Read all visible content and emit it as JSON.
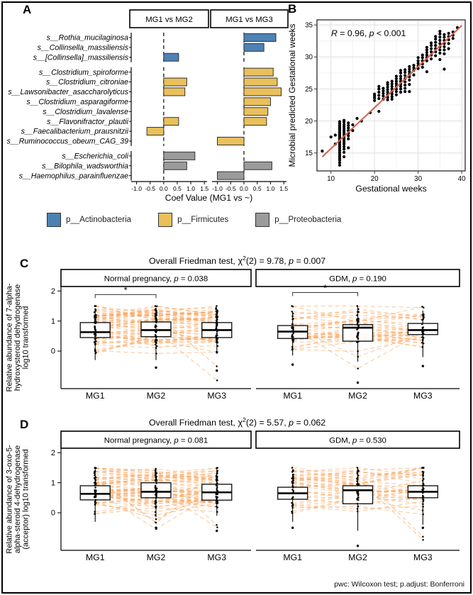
{
  "figure": {
    "panel_labels": {
      "a": "A",
      "b": "B",
      "c": "C",
      "d": "D"
    },
    "footnote": "pwc: Wilcoxon test; p.adjust: Bonferroni"
  },
  "colors": {
    "actinobacteria": "#4e81b4",
    "firmicutes": "#e9c05b",
    "proteobacteria": "#9b9b9b",
    "bar_stroke": "#333333",
    "regression_line": "#d6604d",
    "spaghetti": "#f9a55e",
    "point": "#000000"
  },
  "chart_data": [
    {
      "id": "A",
      "type": "bar",
      "orientation": "horizontal",
      "facets": [
        "MG1 vs MG2",
        "MG1 vs MG3"
      ],
      "xlabel": "Coef Value (MG1 vs ~)",
      "x_tick_labels": [
        "-1.0",
        "-0.5",
        "0.0",
        "0.5",
        "1.0",
        "1.5"
      ],
      "x_tick_values": [
        -1.0,
        -0.5,
        0.0,
        0.5,
        1.0,
        1.5
      ],
      "xlim": [
        -1.2,
        1.6
      ],
      "groups": [
        {
          "phylum": "p__Actinobacteria",
          "color_key": "actinobacteria",
          "species": [
            {
              "name": "s__Rothia_mucilaginosa",
              "mg1_vs_mg2": null,
              "mg1_vs_mg3": 1.2
            },
            {
              "name": "s__Collinsella_massiliensis",
              "mg1_vs_mg2": null,
              "mg1_vs_mg3": 0.75
            },
            {
              "name": "s__[Collinsella]_massiliensis",
              "mg1_vs_mg2": 0.55,
              "mg1_vs_mg3": null
            }
          ]
        },
        {
          "phylum": "p__Firmicutes",
          "color_key": "firmicutes",
          "species": [
            {
              "name": "s__Clostridium_spiroforme",
              "mg1_vs_mg2": null,
              "mg1_vs_mg3": 1.1
            },
            {
              "name": "s__Clostridium_citroniae",
              "mg1_vs_mg2": 0.85,
              "mg1_vs_mg3": 1.25
            },
            {
              "name": "s__Lawsonibacter_asaccharolyticus",
              "mg1_vs_mg2": 0.78,
              "mg1_vs_mg3": 1.4
            },
            {
              "name": "s__Clostridium_asparagiforme",
              "mg1_vs_mg2": null,
              "mg1_vs_mg3": 1.0
            },
            {
              "name": "s__Clostridium_lavalense",
              "mg1_vs_mg2": null,
              "mg1_vs_mg3": 0.9
            },
            {
              "name": "s__Flavonifractor_plautii",
              "mg1_vs_mg2": 0.55,
              "mg1_vs_mg3": 0.85
            },
            {
              "name": "s__Faecalibacterium_prausnitzii",
              "mg1_vs_mg2": -0.62,
              "mg1_vs_mg3": null
            },
            {
              "name": "s__Ruminococcus_obeum_CAG_39",
              "mg1_vs_mg2": null,
              "mg1_vs_mg3": -1.0
            }
          ]
        },
        {
          "phylum": "p__Proteobacteria",
          "color_key": "proteobacteria",
          "species": [
            {
              "name": "s__Escherichia_coli",
              "mg1_vs_mg2": 1.15,
              "mg1_vs_mg3": null
            },
            {
              "name": "s__Bilophila_wadsworthia",
              "mg1_vs_mg2": 0.85,
              "mg1_vs_mg3": 1.05
            },
            {
              "name": "s__Haemophilus_parainfluenzae",
              "mg1_vs_mg2": null,
              "mg1_vs_mg3": -1.0
            }
          ]
        }
      ],
      "legend": [
        {
          "label": "p__Actinobacteria",
          "color_key": "actinobacteria"
        },
        {
          "label": "p__Firmicutes",
          "color_key": "firmicutes"
        },
        {
          "label": "p__Proteobacteria",
          "color_key": "proteobacteria"
        }
      ]
    },
    {
      "id": "B",
      "type": "scatter",
      "xlabel": "Gestational weeks",
      "ylabel": "Microbial predicted Gestational weeks",
      "annotation": {
        "r_symbol": "R",
        "r_value": "0.96",
        "p_symbol": "p",
        "p_value": "< 0.001"
      },
      "x_ticks": [
        10,
        20,
        30,
        40
      ],
      "y_ticks": [
        15,
        20,
        25,
        30,
        35
      ],
      "xlim": [
        6.8,
        40.8
      ],
      "ylim": [
        12.2,
        35.8
      ],
      "regression": {
        "x1": 8,
        "y1": 14.4,
        "x2": 40,
        "y2": 34.9
      },
      "clusters": [
        [
          8,
          [
            15.3
          ]
        ],
        [
          10,
          [
            17.5
          ]
        ],
        [
          11,
          [
            16.4,
            17.8
          ]
        ],
        [
          12,
          [
            13.1,
            13.5,
            13.9,
            14.2,
            14.5,
            14.8,
            15.1,
            15.4,
            15.7,
            16,
            16.3,
            16.6,
            16.9,
            17.1,
            17.3,
            17.5,
            17.7,
            17.9,
            18.1,
            18.3,
            18.5,
            18.7,
            18.9,
            19.1,
            19.3,
            19.6,
            19.9
          ]
        ],
        [
          13,
          [
            14.4,
            15.1,
            15.6,
            16,
            16.4,
            16.7,
            17,
            17.3,
            17.6,
            17.9,
            18.2,
            18.5,
            18.8,
            19.1,
            19.4,
            19.8,
            20.1
          ]
        ],
        [
          14,
          [
            15.8,
            17.2,
            17.7,
            18.1,
            18.5,
            18.9,
            19.3,
            19.7
          ]
        ],
        [
          15,
          [
            18.5,
            19.4
          ]
        ],
        [
          16,
          [
            20.4
          ]
        ],
        [
          17,
          [
            20
          ]
        ],
        [
          19,
          [
            21.3
          ]
        ],
        [
          20,
          [
            23.2,
            23.6,
            23.9,
            24.2
          ]
        ],
        [
          21,
          [
            21.5,
            23.5,
            24,
            24.5,
            25,
            25.4
          ]
        ],
        [
          22,
          [
            23.4,
            23.9,
            24.3,
            24.7,
            25.1
          ]
        ],
        [
          23,
          [
            23.3,
            23.7,
            24.1,
            24.5,
            24.9,
            25.3,
            25.7,
            26
          ]
        ],
        [
          24,
          [
            23.4,
            23.8,
            24.2,
            24.6,
            25,
            25.4,
            25.8,
            26.2
          ]
        ],
        [
          25,
          [
            24.1,
            24.6,
            25,
            25.4,
            25.8,
            26.2,
            26.6,
            27
          ]
        ],
        [
          26,
          [
            24.5,
            25,
            25.4,
            25.8,
            26.2,
            26.6,
            27,
            27.5,
            27.9
          ]
        ],
        [
          27,
          [
            24.6,
            25.1,
            25.6,
            26.1,
            26.6,
            27.1,
            27.6,
            28
          ]
        ],
        [
          28,
          [
            24.6,
            25.7,
            26.4,
            26.9,
            27.3,
            27.7,
            28.1,
            28.5
          ]
        ],
        [
          29,
          [
            27.2,
            27.9,
            28.3,
            28.7
          ]
        ],
        [
          30,
          [
            28.2,
            28.6,
            29,
            29.4,
            29.9
          ]
        ],
        [
          31,
          [
            28.4,
            28.9,
            29.4,
            29.9,
            30.3
          ]
        ],
        [
          32,
          [
            27.7,
            29.4,
            29.9,
            30.3,
            30.7,
            31.1,
            31.5
          ]
        ],
        [
          33,
          [
            29.7,
            30.3,
            30.8,
            31.3,
            31.8,
            32.2
          ]
        ],
        [
          34,
          [
            30.2,
            30.8,
            31.3,
            31.8,
            32.3,
            32.8,
            33.2
          ]
        ],
        [
          35,
          [
            29.6,
            30.6,
            31.1,
            31.6,
            32.1,
            32.6,
            33.1,
            33.6,
            34
          ]
        ],
        [
          36,
          [
            28.1,
            30.5,
            31.1,
            31.6,
            32.1,
            32.6,
            33.1,
            33.5
          ]
        ],
        [
          37,
          [
            31.3,
            32.1,
            32.7,
            33.2,
            33.7
          ]
        ],
        [
          38,
          [
            32.9,
            33.4,
            33.9
          ]
        ],
        [
          39,
          [
            34.6
          ]
        ]
      ]
    },
    {
      "id": "C",
      "type": "box",
      "title": {
        "prefix": "Overall Friedman test,",
        "chi": "χ",
        "chi_exp": "2",
        "df": "(2)",
        "value": "9.78",
        "p_value": "0.007"
      },
      "ylabel_lines": [
        "Relative abundance of  7-alpha-",
        "hydroxysteroid dehydrogenase",
        "log10 transformed"
      ],
      "y_ticks": [
        0,
        1,
        2
      ],
      "ylim": [
        -1.25,
        2.15
      ],
      "categories": [
        "MG1",
        "MG2",
        "MG3"
      ],
      "facets": [
        {
          "label": "Normal pregnancy",
          "p_symbol": "p",
          "p_value": "0.038",
          "n_lines": 60,
          "seed": 7,
          "boxes": [
            {
              "q1": 0.45,
              "median": 0.63,
              "q3": 0.95,
              "whisker_low": -0.3,
              "whisker_high": 1.4,
              "outliers": []
            },
            {
              "q1": 0.48,
              "median": 0.7,
              "q3": 0.97,
              "whisker_low": -0.3,
              "whisker_high": 1.45,
              "outliers": [
                -0.55
              ]
            },
            {
              "q1": 0.45,
              "median": 0.7,
              "q3": 0.95,
              "whisker_low": -0.1,
              "whisker_high": 1.4,
              "outliers": [
                -0.65
              ]
            }
          ],
          "bracket": {
            "from": 0,
            "to": 1,
            "label": "*",
            "y": 1.88
          }
        },
        {
          "label": "GDM",
          "p_symbol": "p",
          "p_value": "0.190",
          "n_lines": 38,
          "seed": 13,
          "boxes": [
            {
              "q1": 0.42,
              "median": 0.65,
              "q3": 0.85,
              "whisker_low": -0.15,
              "whisker_high": 1.3,
              "outliers": [
                -0.45
              ]
            },
            {
              "q1": 0.33,
              "median": 0.78,
              "q3": 0.88,
              "whisker_low": -0.35,
              "whisker_high": 1.5,
              "outliers": [
                -1.05
              ]
            },
            {
              "q1": 0.55,
              "median": 0.7,
              "q3": 0.92,
              "whisker_low": -0.2,
              "whisker_high": 1.35,
              "outliers": [
                -0.5
              ]
            }
          ],
          "bracket": {
            "from": 0,
            "to": 1,
            "label": "*",
            "y": 1.95
          }
        }
      ]
    },
    {
      "id": "D",
      "type": "box",
      "title": {
        "prefix": "Overall Friedman test,",
        "chi": "χ",
        "chi_exp": "2",
        "df": "(2)",
        "value": "5.57",
        "p_value": "0.062"
      },
      "ylabel_lines": [
        "Relative abundance of  3-oxo-5-",
        "alpha-steroid 4-dehydrogenase",
        "(acceptor)  log10 transformed"
      ],
      "y_ticks": [
        0,
        1,
        2
      ],
      "ylim": [
        -1.25,
        2.15
      ],
      "categories": [
        "MG1",
        "MG2",
        "MG3"
      ],
      "facets": [
        {
          "label": "Normal pregnancy",
          "p_symbol": "p",
          "p_value": "0.081",
          "n_lines": 60,
          "seed": 21,
          "boxes": [
            {
              "q1": 0.43,
              "median": 0.63,
              "q3": 0.9,
              "whisker_low": -0.3,
              "whisker_high": 1.45,
              "outliers": []
            },
            {
              "q1": 0.5,
              "median": 0.7,
              "q3": 1.0,
              "whisker_low": -0.15,
              "whisker_high": 1.45,
              "outliers": [
                -0.5
              ]
            },
            {
              "q1": 0.42,
              "median": 0.68,
              "q3": 0.95,
              "whisker_low": -0.1,
              "whisker_high": 1.45,
              "outliers": [
                -0.6
              ]
            }
          ],
          "bracket": null
        },
        {
          "label": "GDM",
          "p_symbol": "p",
          "p_value": "0.530",
          "n_lines": 38,
          "seed": 33,
          "boxes": [
            {
              "q1": 0.45,
              "median": 0.65,
              "q3": 0.85,
              "whisker_low": -0.3,
              "whisker_high": 1.3,
              "outliers": [
                -0.5
              ]
            },
            {
              "q1": 0.3,
              "median": 0.75,
              "q3": 0.9,
              "whisker_low": -0.6,
              "whisker_high": 1.5,
              "outliers": [
                -1.1
              ]
            },
            {
              "q1": 0.5,
              "median": 0.7,
              "q3": 0.9,
              "whisker_low": -0.4,
              "whisker_high": 1.35,
              "outliers": [
                -0.5
              ]
            }
          ],
          "bracket": null
        }
      ]
    }
  ]
}
